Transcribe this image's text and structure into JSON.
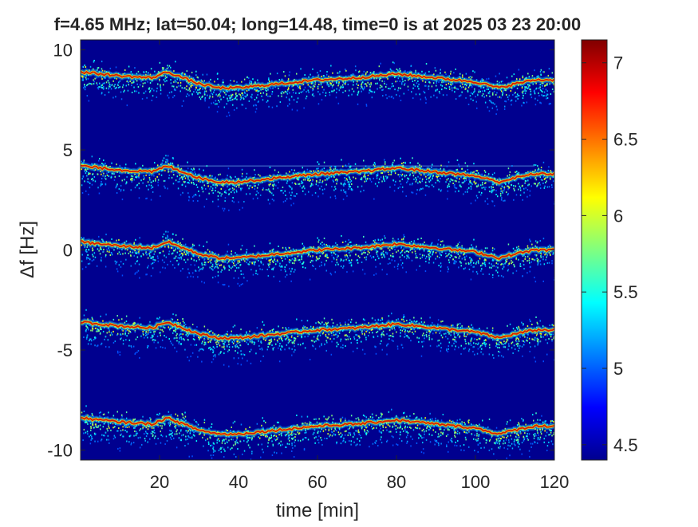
{
  "chart_data": {
    "type": "heatmap",
    "title": "f=4.65 MHz;  lat=50.04; long=14.48, time=0 is at 2025 03 23 20:00",
    "xlabel": "time [min]",
    "ylabel": "Δf [Hz]",
    "xlim": [
      0,
      120
    ],
    "ylim": [
      -10.5,
      10.5
    ],
    "x_ticks": [
      20,
      40,
      60,
      80,
      100,
      120
    ],
    "y_ticks": [
      10,
      5,
      0,
      -5,
      -10
    ],
    "colorbar": {
      "clim": [
        4.4,
        7.15
      ],
      "ticks": [
        4.5,
        5,
        5.5,
        6,
        6.5,
        7
      ],
      "colormap": "jet"
    },
    "background_color": "#00008f",
    "trace_offset_reference": {
      "t": [
        0,
        10,
        18,
        22,
        26,
        30,
        35,
        40,
        50,
        60,
        70,
        80,
        90,
        100,
        106,
        110,
        115,
        120
      ],
      "dy": [
        0.0,
        -0.2,
        -0.3,
        0.0,
        -0.3,
        -0.6,
        -0.8,
        -0.8,
        -0.6,
        -0.4,
        -0.3,
        -0.1,
        -0.3,
        -0.5,
        -0.8,
        -0.6,
        -0.4,
        -0.4
      ]
    },
    "series": [
      {
        "base_y": 8.9
      },
      {
        "base_y": 4.2
      },
      {
        "base_y": 0.4
      },
      {
        "base_y": -3.6
      },
      {
        "base_y": -8.4
      }
    ],
    "horizontal_line": {
      "y": 4.2,
      "x_range": [
        25,
        115
      ]
    }
  }
}
